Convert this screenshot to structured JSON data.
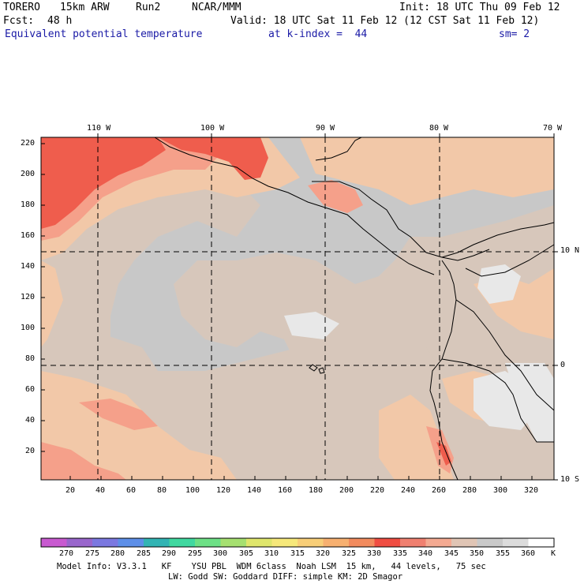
{
  "header": {
    "model": "TORERO",
    "resolution": "15km ARW",
    "run": "Run2",
    "org": "NCAR/MMM",
    "init": "Init: 18 UTC Thu 09 Feb 12",
    "fcst_label": "Fcst:",
    "fcst_value": "48 h",
    "valid": "Valid: 18 UTC Sat 11 Feb 12 (12 CST Sat 11 Feb 12)",
    "field": "Equivalent potential temperature",
    "level": "at k-index =  44",
    "smoothing": "sm= 2"
  },
  "map": {
    "top_axis": [
      "110 W",
      "100 W",
      "90 W",
      "80 W",
      "70 W"
    ],
    "left_axis": [
      "220",
      "200",
      "180",
      "160",
      "140",
      "120",
      "100",
      "80",
      "60",
      "40",
      "20"
    ],
    "bottom_axis": [
      "20",
      "40",
      "60",
      "80",
      "100",
      "120",
      "140",
      "160",
      "180",
      "200",
      "220",
      "240",
      "260",
      "280",
      "300",
      "320"
    ],
    "right_axis": [
      "10 N",
      "0",
      "10 S"
    ],
    "colors": {
      "background": "#c8c8c8",
      "mid": "#d7c7bb",
      "warm": "#f2c8a8",
      "hot": "#f5a08a",
      "hottest": "#ef5d4d",
      "cold": "#e8e8e8"
    }
  },
  "colorbar": {
    "labels": [
      "270",
      "275",
      "280",
      "285",
      "290",
      "295",
      "300",
      "305",
      "310",
      "315",
      "320",
      "325",
      "330",
      "335",
      "340",
      "345",
      "350",
      "355",
      "360"
    ],
    "unit": "K",
    "colors": [
      "#c85ad0",
      "#9966cc",
      "#7b78e0",
      "#5d8fe8",
      "#32b4b4",
      "#40d8a0",
      "#6de086",
      "#a6e070",
      "#dfe66c",
      "#f6e87a",
      "#f8ce78",
      "#f7b070",
      "#f28b5e",
      "#ef4d42",
      "#f08070",
      "#f4aa92",
      "#e0c5b5",
      "#c9c9c9",
      "#dcdcdc",
      "#ffffff"
    ]
  },
  "footer": {
    "line1": "Model Info: V3.3.1   KF    YSU PBL  WDM 6class  Noah LSM  15 km,   44 levels,   75 sec",
    "line2": "LW: Godd SW: Goddard DIFF: simple KM: 2D Smagor"
  }
}
